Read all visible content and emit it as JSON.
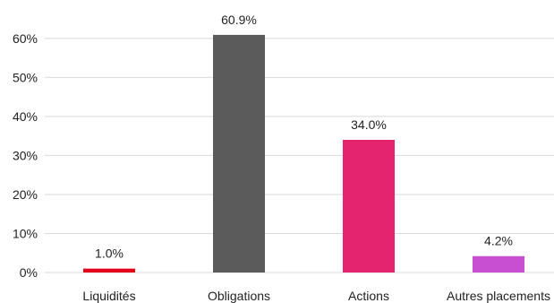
{
  "chart_data": {
    "type": "bar",
    "categories": [
      "Liquidités",
      "Obligations",
      "Actions",
      "Autres placements"
    ],
    "values": [
      1.0,
      60.9,
      34.0,
      4.2
    ],
    "data_labels": [
      "1.0%",
      "60.9%",
      "34.0%",
      "4.2%"
    ],
    "colors": [
      "#e3001b",
      "#5b5b5b",
      "#e4246f",
      "#c84fd1"
    ],
    "title": "",
    "xlabel": "",
    "ylabel": "",
    "ylim": [
      0,
      60
    ],
    "yticks": [
      0,
      10,
      20,
      30,
      40,
      50,
      60
    ],
    "ytick_labels": [
      "0%",
      "10%",
      "20%",
      "30%",
      "40%",
      "50%",
      "60%"
    ],
    "grid": true,
    "legend": "none"
  }
}
